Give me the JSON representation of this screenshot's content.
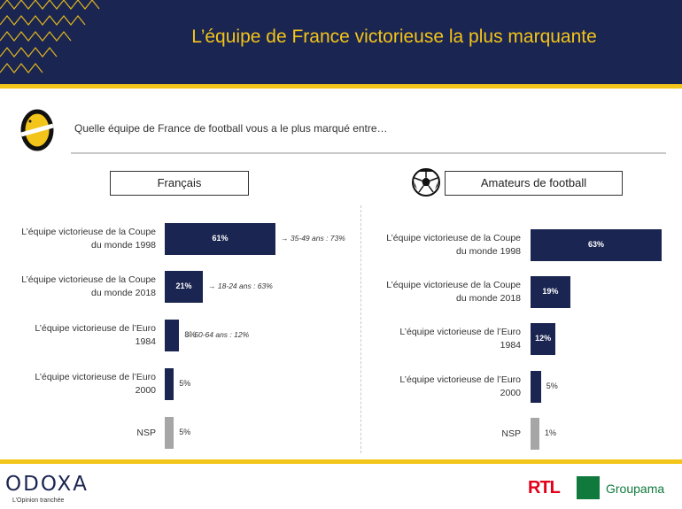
{
  "title": "L’équipe de France victorieuse la plus marquante",
  "question": "Quelle équipe de France de football vous a le plus marqué entre…",
  "colors": {
    "navy": "#1b2551",
    "gold": "#f3c419",
    "nsp_gray": "#a6a6a6"
  },
  "icons": {
    "question_logo": "odoxa-o-icon",
    "football": "football-icon"
  },
  "chart_data": [
    {
      "type": "bar",
      "orientation": "horizontal",
      "panel_title": "Français",
      "unit": "%",
      "categories": [
        "L’équipe victorieuse de la Coupe du monde 1998",
        "L’équipe victorieuse de la Coupe du monde 2018",
        "L’équipe victorieuse de l’Euro 1984",
        "L’équipe victorieuse de l’Euro 2000",
        "NSP"
      ],
      "values": [
        61,
        21,
        8,
        5,
        5
      ],
      "value_labels": [
        "61%",
        "21%",
        "8%",
        "5%",
        "5%"
      ],
      "annotations": [
        "→ 35-49 ans : 73%",
        "→ 18-24 ans : 63%",
        "→ 50-64 ans : 12%",
        "",
        ""
      ]
    },
    {
      "type": "bar",
      "orientation": "horizontal",
      "panel_title": "Amateurs de football",
      "unit": "%",
      "categories": [
        "L’équipe victorieuse de la Coupe du monde 1998",
        "L’équipe victorieuse de la Coupe du monde 2018",
        "L’équipe victorieuse de l’Euro 1984",
        "L’équipe victorieuse de l’Euro 2000",
        "NSP"
      ],
      "values": [
        63,
        19,
        12,
        5,
        1
      ],
      "value_labels": [
        "63%",
        "19%",
        "12%",
        "5%",
        "1%"
      ],
      "annotations": [
        "",
        "",
        "",
        "",
        ""
      ]
    }
  ],
  "footer": {
    "brand": "ODOXA",
    "tagline": "L’Opinion tranchée",
    "partners": [
      "RTL",
      "Groupama"
    ]
  }
}
